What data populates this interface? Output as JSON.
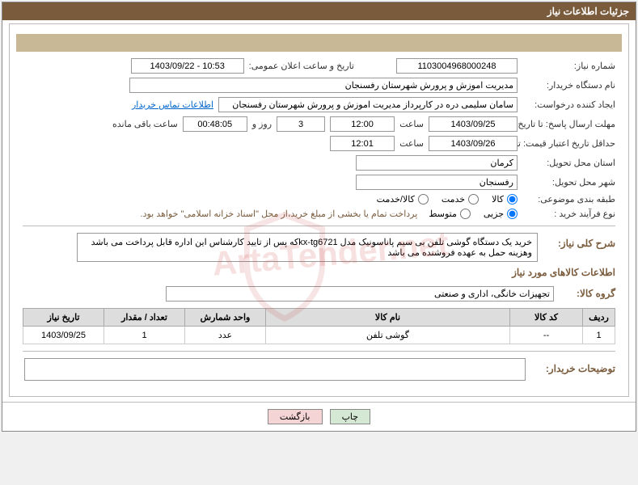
{
  "header": {
    "title": "جزئیات اطلاعات نیاز"
  },
  "fields": {
    "need_no_label": "شماره نیاز:",
    "need_no": "1103004968000248",
    "announce_label": "تاریخ و ساعت اعلان عمومی:",
    "announce_value": "1403/09/22 - 10:53",
    "buyer_org_label": "نام دستگاه خریدار:",
    "buyer_org": "مدیریت اموزش و پرورش شهرستان رفسنجان",
    "requester_label": "ایجاد کننده درخواست:",
    "requester": "سامان سلیمی دره در کارپرداز مدیریت اموزش و پرورش شهرستان رفسنجان",
    "contact_link": "اطلاعات تماس خریدار",
    "deadline_label": "مهلت ارسال پاسخ: تا تاریخ:",
    "deadline_date": "1403/09/25",
    "time_label": "ساعت",
    "deadline_time": "12:00",
    "days_and_label": "روز و",
    "days_value": "3",
    "countdown": "00:48:05",
    "remaining_label": "ساعت باقی مانده",
    "validity_label": "حداقل تاریخ اعتبار قیمت: تا تاریخ:",
    "validity_date": "1403/09/26",
    "validity_time": "12:01",
    "province_label": "استان محل تحویل:",
    "province": "کرمان",
    "city_label": "شهر محل تحویل:",
    "city": "رفسنجان",
    "category_label": "طبقه بندی موضوعی:",
    "radio_goods": "کالا",
    "radio_service": "خدمت",
    "radio_both": "کالا/خدمت",
    "process_label": "نوع فرآیند خرید :",
    "radio_partial": "جزیی",
    "radio_medium": "متوسط",
    "payment_note": "پرداخت تمام یا بخشی از مبلغ خرید،از محل \"اسناد خزانه اسلامی\" خواهد بود.",
    "summary_label": "شرح کلی نیاز:",
    "summary_text": "خرید یک دستگاه گوشی تلفن بی سیم پاناسونیک مدل kx-tg6721که پس از تایید کارشناس این اداره قابل پرداخت می باشد وهزینه حمل به عهده فروشنده می باشد",
    "items_section": "اطلاعات کالاهای مورد نیاز",
    "group_label": "گروه کالا:",
    "group_value": "تجهیزات خانگی، اداری و صنعتی",
    "buyer_comment_label": "توضیحات خریدار:"
  },
  "table": {
    "headers": {
      "row": "ردیف",
      "code": "کد کالا",
      "name": "نام کالا",
      "unit": "واحد شمارش",
      "qty": "تعداد / مقدار",
      "date": "تاریخ نیاز"
    },
    "rows": [
      {
        "row": "1",
        "code": "--",
        "name": "گوشی تلفن",
        "unit": "عدد",
        "qty": "1",
        "date": "1403/09/25"
      }
    ]
  },
  "buttons": {
    "print": "چاپ",
    "back": "بازگشت"
  },
  "watermark": "ArtaTender.net"
}
